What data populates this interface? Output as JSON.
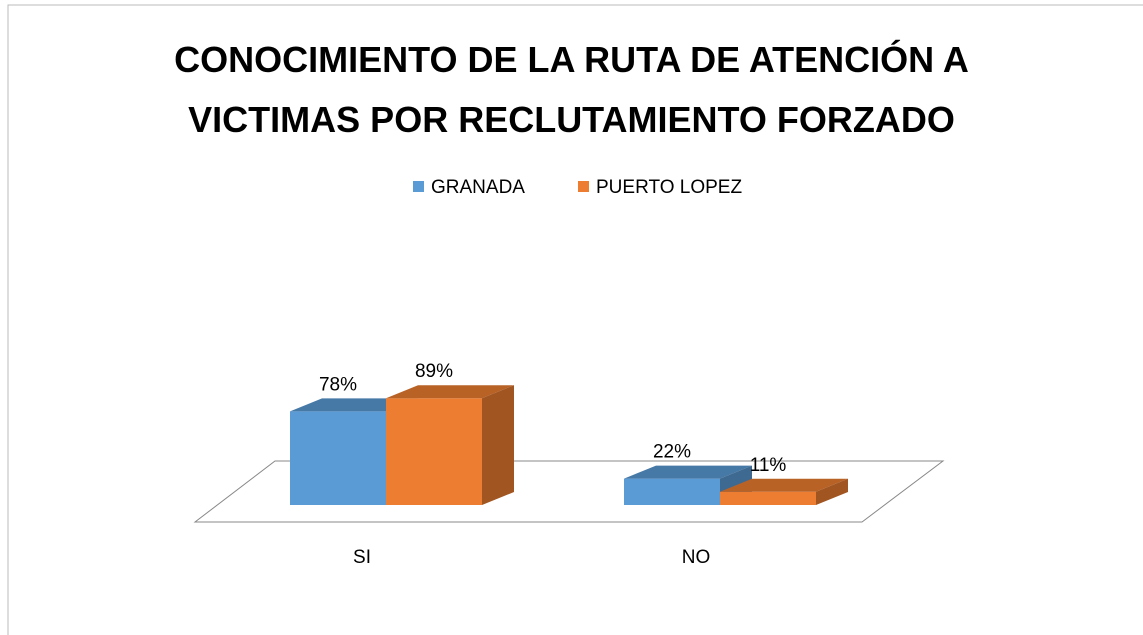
{
  "chart_data": {
    "type": "bar3d",
    "title": "CONOCIMIENTO DE LA RUTA DE ATENCIÓN A VICTIMAS POR RECLUTAMIENTO FORZADO",
    "categories": [
      "SI",
      "NO"
    ],
    "series": [
      {
        "name": "GRANADA",
        "color": "#5b9bd5",
        "values": [
          78,
          22
        ],
        "value_labels": [
          "78%",
          "22%"
        ]
      },
      {
        "name": "PUERTO LOPEZ",
        "color": "#ed7d31",
        "values": [
          89,
          11
        ],
        "value_labels": [
          "89%",
          "11%"
        ]
      }
    ],
    "legend": "top"
  }
}
